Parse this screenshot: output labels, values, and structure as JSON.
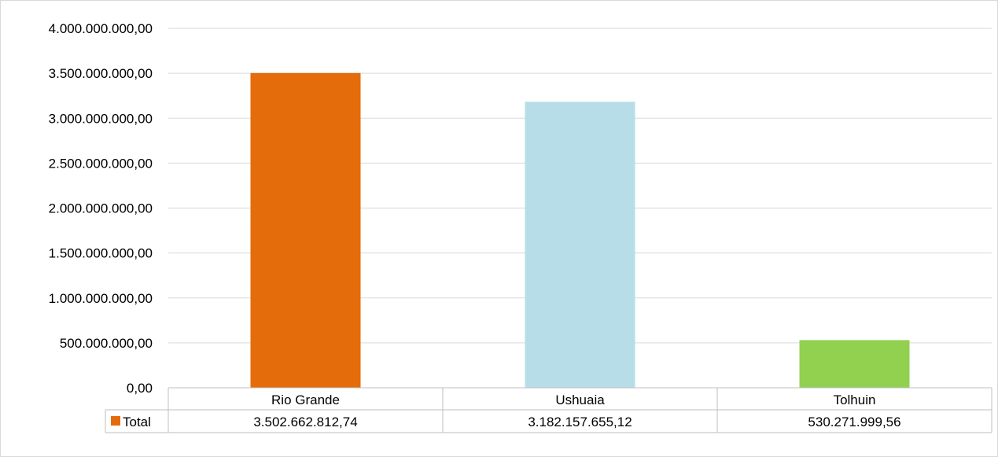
{
  "chart_data": {
    "type": "bar",
    "title": "",
    "xlabel": "",
    "ylabel": "",
    "categories": [
      "Rio Grande",
      "Ushuaia",
      "Tolhuin"
    ],
    "series": [
      {
        "name": "Total",
        "values": [
          3502662812.74,
          3182157655.12,
          530271999.56
        ],
        "value_labels": [
          "3.502.662.812,74",
          "3.182.157.655,12",
          "530.271.999,56"
        ],
        "colors": [
          "#e46c0a",
          "#b7dde8",
          "#92d050"
        ]
      }
    ],
    "ylim": [
      0,
      4000000000
    ],
    "yticks": [
      0,
      500000000,
      1000000000,
      1500000000,
      2000000000,
      2500000000,
      3000000000,
      3500000000,
      4000000000
    ],
    "ytick_labels": [
      "0,00",
      "500.000.000,00",
      "1.000.000.000,00",
      "1.500.000.000,00",
      "2.000.000.000,00",
      "2.500.000.000,00",
      "3.000.000.000,00",
      "3.500.000.000,00",
      "4.000.000.000,00"
    ],
    "grid": true,
    "data_table": true,
    "legend_swatch_color": "#e46c0a"
  }
}
